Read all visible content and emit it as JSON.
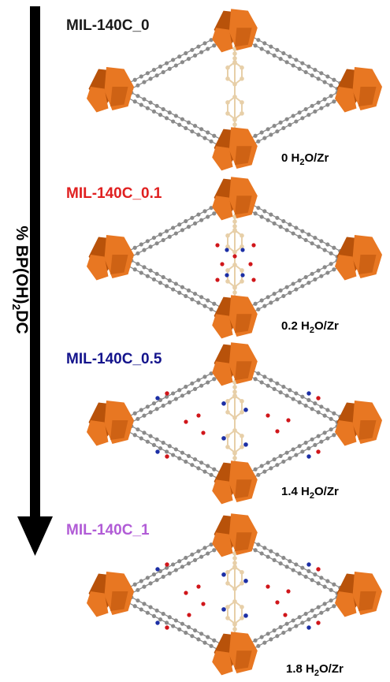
{
  "figure": {
    "axis_label": {
      "prefix": "% BP(OH)",
      "subscript": "2",
      "suffix": "DC"
    },
    "colors": {
      "arrow": "#000000",
      "cluster": "#e87722",
      "cluster_dark": "#b8520a",
      "linker": "#8a8a8a",
      "central_linker": "#e7cfa8",
      "oxygen": "#d0161a",
      "nitrogen": "#1c2fa5"
    },
    "panels": [
      {
        "title": "MIL-140C_0",
        "title_color": "#1a1a1a",
        "water": {
          "value": "0 H",
          "sub": "2",
          "unit": "O/Zr"
        },
        "substituted": false,
        "ring_waters": 0
      },
      {
        "title": "MIL-140C_0.1",
        "title_color": "#e02020",
        "water": {
          "value": "0.2 H",
          "sub": "2",
          "unit": "O/Zr"
        },
        "substituted": false,
        "ring_waters": 0
      },
      {
        "title": "MIL-140C_0.5",
        "title_color": "#14148c",
        "water": {
          "value": "1.4 H",
          "sub": "2",
          "unit": "O/Zr"
        },
        "substituted": true,
        "ring_waters": 6
      },
      {
        "title": "MIL-140C_1",
        "title_color": "#b15cd6",
        "water": {
          "value": "1.8 H",
          "sub": "2",
          "unit": "O/Zr"
        },
        "substituted": true,
        "ring_waters": 8
      }
    ]
  }
}
